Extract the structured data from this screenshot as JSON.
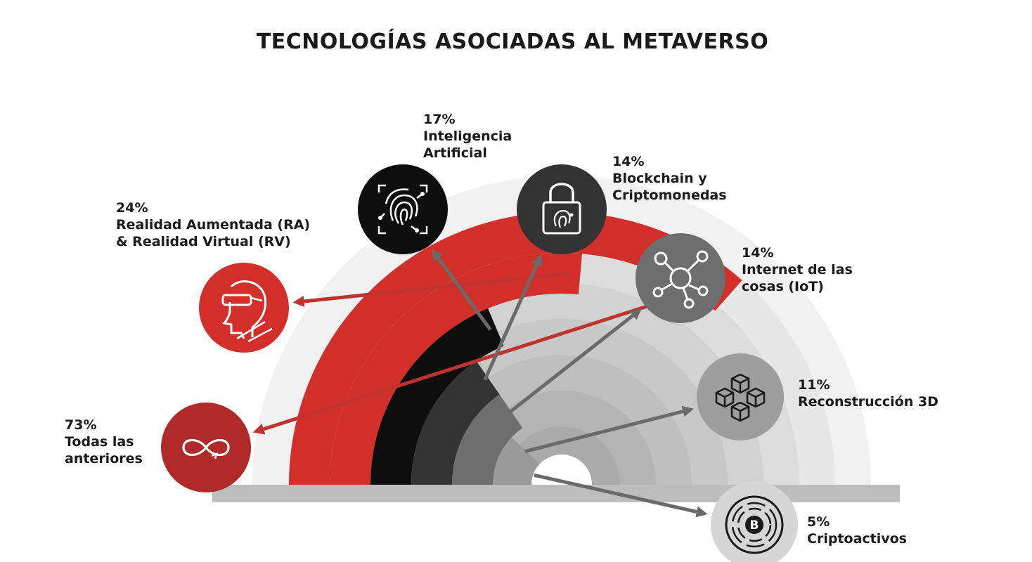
{
  "chart_data": {
    "type": "radial-bar",
    "title": "TECNOLOGÍAS ASOCIADAS AL METAVERSO",
    "unit": "%",
    "items": [
      {
        "value": 73,
        "pct": "73%",
        "lines": [
          "Todas las",
          "anteriores"
        ],
        "color": "#d32f2a",
        "icon": "infinity-icon"
      },
      {
        "value": 24,
        "pct": "24%",
        "lines": [
          "Realidad Aumentada (RA)",
          "& Realidad Virtual (RV)"
        ],
        "color": "#d32f2a",
        "icon": "vr-headset-icon"
      },
      {
        "value": 17,
        "pct": "17%",
        "lines": [
          "Inteligencia",
          "Artificial"
        ],
        "color": "#0e0e0e",
        "icon": "fingerprint-circuit-icon"
      },
      {
        "value": 14,
        "pct": "14%",
        "lines": [
          "Blockchain y",
          "Criptomonedas"
        ],
        "color": "#333333",
        "icon": "padlock-icon"
      },
      {
        "value": 14,
        "pct": "14%",
        "lines": [
          "Internet de las",
          "cosas (IoT)"
        ],
        "color": "#6e6e6e",
        "icon": "network-nodes-icon"
      },
      {
        "value": 11,
        "pct": "11%",
        "lines": [
          "Reconstrucción 3D"
        ],
        "color": "#9a9a9a",
        "icon": "cubes-icon"
      },
      {
        "value": 5,
        "pct": "5%",
        "lines": [
          "Criptoactivos"
        ],
        "color": "#cfcfcf",
        "icon": "bitcoin-icon"
      }
    ]
  }
}
